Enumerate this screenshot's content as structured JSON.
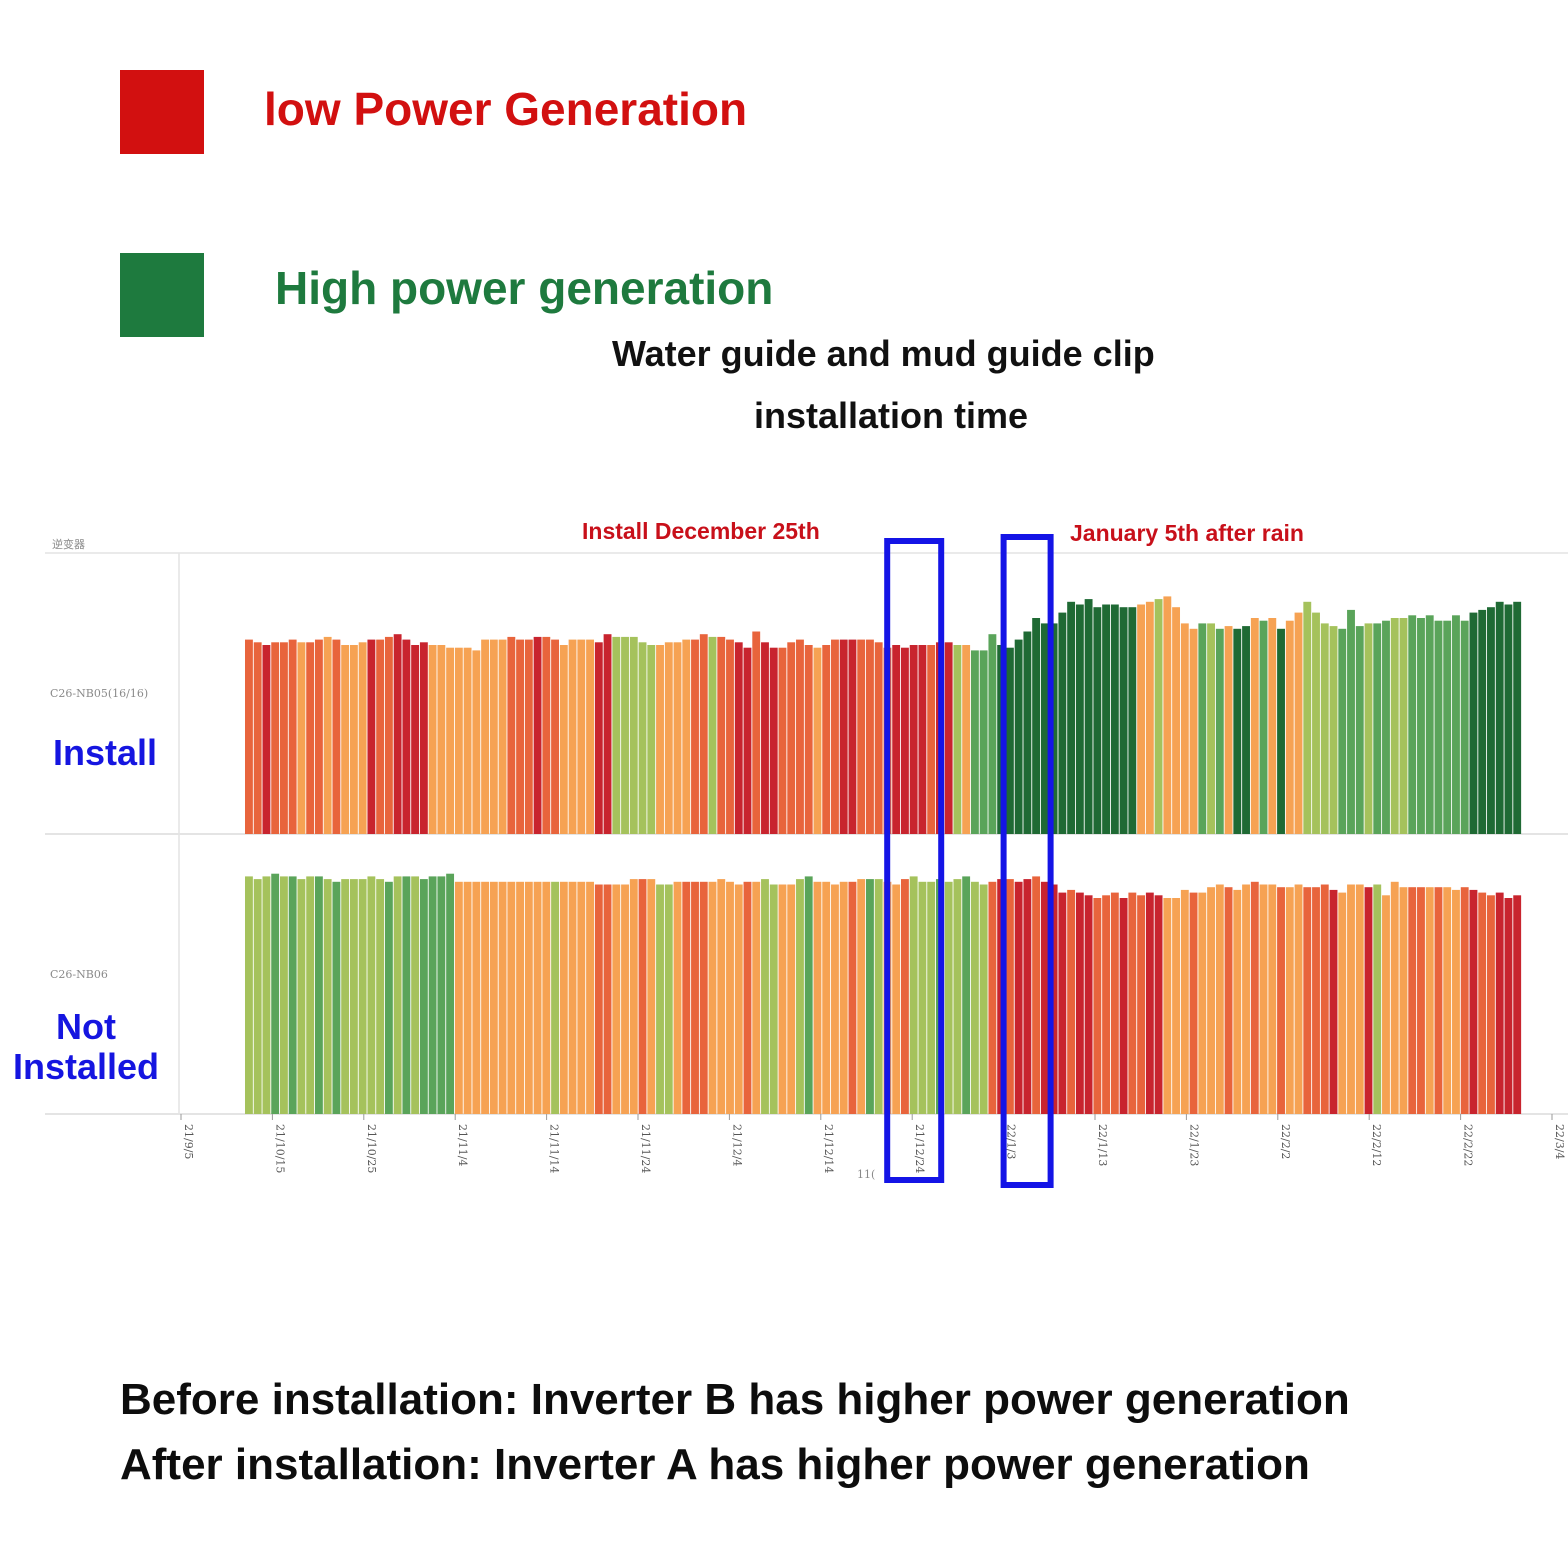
{
  "legend": {
    "low": {
      "label": "low Power Generation",
      "color": "#d21010"
    },
    "high": {
      "label": "High power generation",
      "color": "#1e7a3e"
    }
  },
  "caption": {
    "line1": "Water guide and mud guide clip",
    "line2": "installation time"
  },
  "annotations": {
    "install_date": "Install December 25th",
    "after_rain": "January 5th after rain"
  },
  "chart_header": "逆变器",
  "rows": {
    "install": {
      "code": "C26-NB05(16/16)",
      "label": "Install"
    },
    "not_installed": {
      "code": "C26-NB06",
      "label_line1": "Not",
      "label_line2": "Installed"
    }
  },
  "axis_fragment": "11(",
  "summary": {
    "before": "Before installation: Inverter B has higher power generation",
    "after": "After installation: Inverter A has higher power generation"
  },
  "chart_data": {
    "type": "bar",
    "title": "",
    "x_ticks": [
      "21/9/5",
      "21/10/15",
      "21/10/25",
      "21/11/4",
      "21/11/14",
      "21/11/24",
      "21/12/4",
      "21/12/14",
      "21/12/24",
      "22/1/3",
      "22/1/13",
      "22/1/23",
      "22/2/2",
      "22/2/12",
      "22/2/22",
      "22/3/4"
    ],
    "highlight_windows": [
      "21/12/24",
      "22/1/3"
    ],
    "color_scale": {
      "low": "#c8242e",
      "high": "#1e6b34"
    },
    "series": [
      {
        "name": "Install",
        "values": [
          0.72,
          0.71,
          0.7,
          0.71,
          0.71,
          0.72,
          0.71,
          0.71,
          0.72,
          0.73,
          0.72,
          0.7,
          0.7,
          0.71,
          0.72,
          0.72,
          0.73,
          0.74,
          0.72,
          0.7,
          0.71,
          0.7,
          0.7,
          0.69,
          0.69,
          0.69,
          0.68,
          0.72,
          0.72,
          0.72,
          0.73,
          0.72,
          0.72,
          0.73,
          0.73,
          0.72,
          0.7,
          0.72,
          0.72,
          0.72,
          0.71,
          0.74,
          0.73,
          0.73,
          0.73,
          0.71,
          0.7,
          0.7,
          0.71,
          0.71,
          0.72,
          0.72,
          0.74,
          0.73,
          0.73,
          0.72,
          0.71,
          0.69,
          0.75,
          0.71,
          0.69,
          0.69,
          0.71,
          0.72,
          0.7,
          0.69,
          0.7,
          0.72,
          0.72,
          0.72,
          0.72,
          0.72,
          0.71,
          0.69,
          0.7,
          0.69,
          0.7,
          0.7,
          0.7,
          0.71,
          0.71,
          0.7,
          0.7,
          0.68,
          0.68,
          0.74,
          0.7,
          0.69,
          0.72,
          0.75,
          0.8,
          0.78,
          0.78,
          0.82,
          0.86,
          0.85,
          0.87,
          0.84,
          0.85,
          0.85,
          0.84,
          0.84,
          0.85,
          0.86,
          0.87,
          0.88,
          0.84,
          0.78,
          0.76,
          0.78,
          0.78,
          0.76,
          0.77,
          0.76,
          0.77,
          0.8,
          0.79,
          0.8,
          0.76,
          0.79,
          0.82,
          0.86,
          0.82,
          0.78,
          0.77,
          0.76,
          0.83,
          0.77,
          0.78,
          0.78,
          0.79,
          0.8,
          0.8,
          0.81,
          0.8,
          0.81,
          0.79,
          0.79,
          0.81,
          0.79,
          0.82,
          0.83,
          0.84,
          0.86,
          0.85,
          0.86
        ],
        "colors": [
          "orange-red",
          "orange-red",
          "red",
          "orange-red",
          "orange-red",
          "orange-red",
          "orange",
          "orange-red",
          "orange-red",
          "orange",
          "orange-red",
          "orange",
          "orange",
          "orange",
          "red",
          "orange-red",
          "orange-red",
          "red",
          "red",
          "red",
          "red",
          "orange",
          "orange",
          "orange",
          "orange",
          "orange",
          "orange",
          "orange",
          "orange",
          "orange",
          "orange-red",
          "orange-red",
          "orange-red",
          "red",
          "orange-red",
          "orange-red",
          "orange",
          "orange",
          "orange",
          "orange",
          "red",
          "red",
          "light-green",
          "light-green",
          "light-green",
          "light-green",
          "light-green",
          "orange",
          "orange",
          "orange",
          "orange",
          "orange-red",
          "orange-red",
          "light-green",
          "orange-red",
          "orange-red",
          "red",
          "red",
          "orange-red",
          "red",
          "red",
          "orange-red",
          "orange-red",
          "orange-red",
          "orange-red",
          "orange",
          "orange-red",
          "orange-red",
          "red",
          "red",
          "orange-red",
          "orange-red",
          "orange-red",
          "orange-red",
          "red",
          "red",
          "red",
          "red",
          "orange-red",
          "red",
          "red",
          "light-green",
          "orange",
          "green",
          "green",
          "green",
          "dark-green",
          "dark-green",
          "dark-green",
          "dark-green",
          "dark-green",
          "dark-green",
          "dark-green",
          "dark-green",
          "dark-green",
          "dark-green",
          "dark-green",
          "dark-green",
          "dark-green",
          "dark-green",
          "dark-green",
          "dark-green",
          "orange",
          "orange",
          "light-green",
          "orange",
          "orange",
          "orange",
          "orange",
          "green",
          "light-green",
          "green",
          "orange",
          "dark-green",
          "dark-green",
          "orange",
          "green",
          "orange",
          "dark-green",
          "orange",
          "orange",
          "light-green",
          "light-green",
          "light-green",
          "light-green",
          "green",
          "green",
          "green",
          "light-green",
          "green",
          "green",
          "light-green",
          "light-green",
          "green",
          "green",
          "green",
          "green",
          "green",
          "green",
          "green",
          "dark-green",
          "dark-green",
          "dark-green",
          "dark-green",
          "dark-green",
          "dark-green"
        ]
      },
      {
        "name": "Not Installed",
        "values": [
          0.88,
          0.87,
          0.88,
          0.89,
          0.88,
          0.88,
          0.87,
          0.88,
          0.88,
          0.87,
          0.86,
          0.87,
          0.87,
          0.87,
          0.88,
          0.87,
          0.86,
          0.88,
          0.88,
          0.88,
          0.87,
          0.88,
          0.88,
          0.89,
          0.86,
          0.86,
          0.86,
          0.86,
          0.86,
          0.86,
          0.86,
          0.86,
          0.86,
          0.86,
          0.86,
          0.86,
          0.86,
          0.86,
          0.86,
          0.86,
          0.85,
          0.85,
          0.85,
          0.85,
          0.87,
          0.87,
          0.87,
          0.85,
          0.85,
          0.86,
          0.86,
          0.86,
          0.86,
          0.86,
          0.87,
          0.86,
          0.85,
          0.86,
          0.86,
          0.87,
          0.85,
          0.85,
          0.85,
          0.87,
          0.88,
          0.86,
          0.86,
          0.85,
          0.86,
          0.86,
          0.87,
          0.87,
          0.87,
          0.86,
          0.85,
          0.87,
          0.88,
          0.86,
          0.86,
          0.87,
          0.86,
          0.87,
          0.88,
          0.86,
          0.85,
          0.86,
          0.87,
          0.87,
          0.86,
          0.87,
          0.88,
          0.86,
          0.85,
          0.82,
          0.83,
          0.82,
          0.81,
          0.8,
          0.81,
          0.82,
          0.8,
          0.82,
          0.81,
          0.82,
          0.81,
          0.8,
          0.8,
          0.83,
          0.82,
          0.82,
          0.84,
          0.85,
          0.84,
          0.83,
          0.85,
          0.86,
          0.85,
          0.85,
          0.84,
          0.84,
          0.85,
          0.84,
          0.84,
          0.85,
          0.83,
          0.82,
          0.85,
          0.85,
          0.84,
          0.85,
          0.81,
          0.86,
          0.84,
          0.84,
          0.84,
          0.84,
          0.84,
          0.84,
          0.83,
          0.84,
          0.83,
          0.82,
          0.81,
          0.82,
          0.8,
          0.81
        ],
        "colors": [
          "light-green",
          "light-green",
          "light-green",
          "green",
          "light-green",
          "green",
          "light-green",
          "light-green",
          "green",
          "light-green",
          "green",
          "light-green",
          "light-green",
          "light-green",
          "light-green",
          "light-green",
          "green",
          "light-green",
          "green",
          "light-green",
          "green",
          "green",
          "green",
          "green",
          "orange",
          "orange",
          "orange",
          "orange",
          "orange",
          "orange",
          "orange",
          "orange",
          "orange",
          "orange",
          "orange",
          "light-green",
          "orange",
          "orange",
          "orange",
          "orange",
          "orange-red",
          "orange-red",
          "orange",
          "orange",
          "orange",
          "orange-red",
          "orange",
          "light-green",
          "light-green",
          "orange",
          "orange-red",
          "orange-red",
          "orange-red",
          "orange",
          "orange",
          "orange",
          "orange",
          "orange-red",
          "orange",
          "light-green",
          "light-green",
          "orange",
          "orange",
          "light-green",
          "green",
          "orange",
          "orange",
          "orange",
          "orange",
          "orange-red",
          "orange",
          "green",
          "light-green",
          "orange",
          "orange",
          "orange-red",
          "light-green",
          "light-green",
          "light-green",
          "green",
          "light-green",
          "light-green",
          "green",
          "light-green",
          "light-green",
          "orange-red",
          "red",
          "orange-red",
          "red",
          "red",
          "orange-red",
          "red",
          "red",
          "red",
          "orange-red",
          "red",
          "red",
          "orange-red",
          "orange-red",
          "orange-red",
          "red",
          "orange-red",
          "orange-red",
          "red",
          "red",
          "orange",
          "orange",
          "orange",
          "orange-red",
          "orange",
          "orange",
          "orange",
          "orange-red",
          "orange",
          "orange",
          "orange-red",
          "orange",
          "orange",
          "orange-red",
          "orange",
          "orange",
          "orange-red",
          "orange-red",
          "orange-red",
          "red",
          "orange",
          "orange",
          "orange",
          "red",
          "light-green",
          "orange",
          "orange",
          "orange",
          "orange-red",
          "orange-red",
          "orange",
          "orange-red",
          "orange",
          "orange",
          "orange-red",
          "red",
          "orange-red",
          "orange-red",
          "red",
          "red",
          "red"
        ]
      }
    ]
  }
}
